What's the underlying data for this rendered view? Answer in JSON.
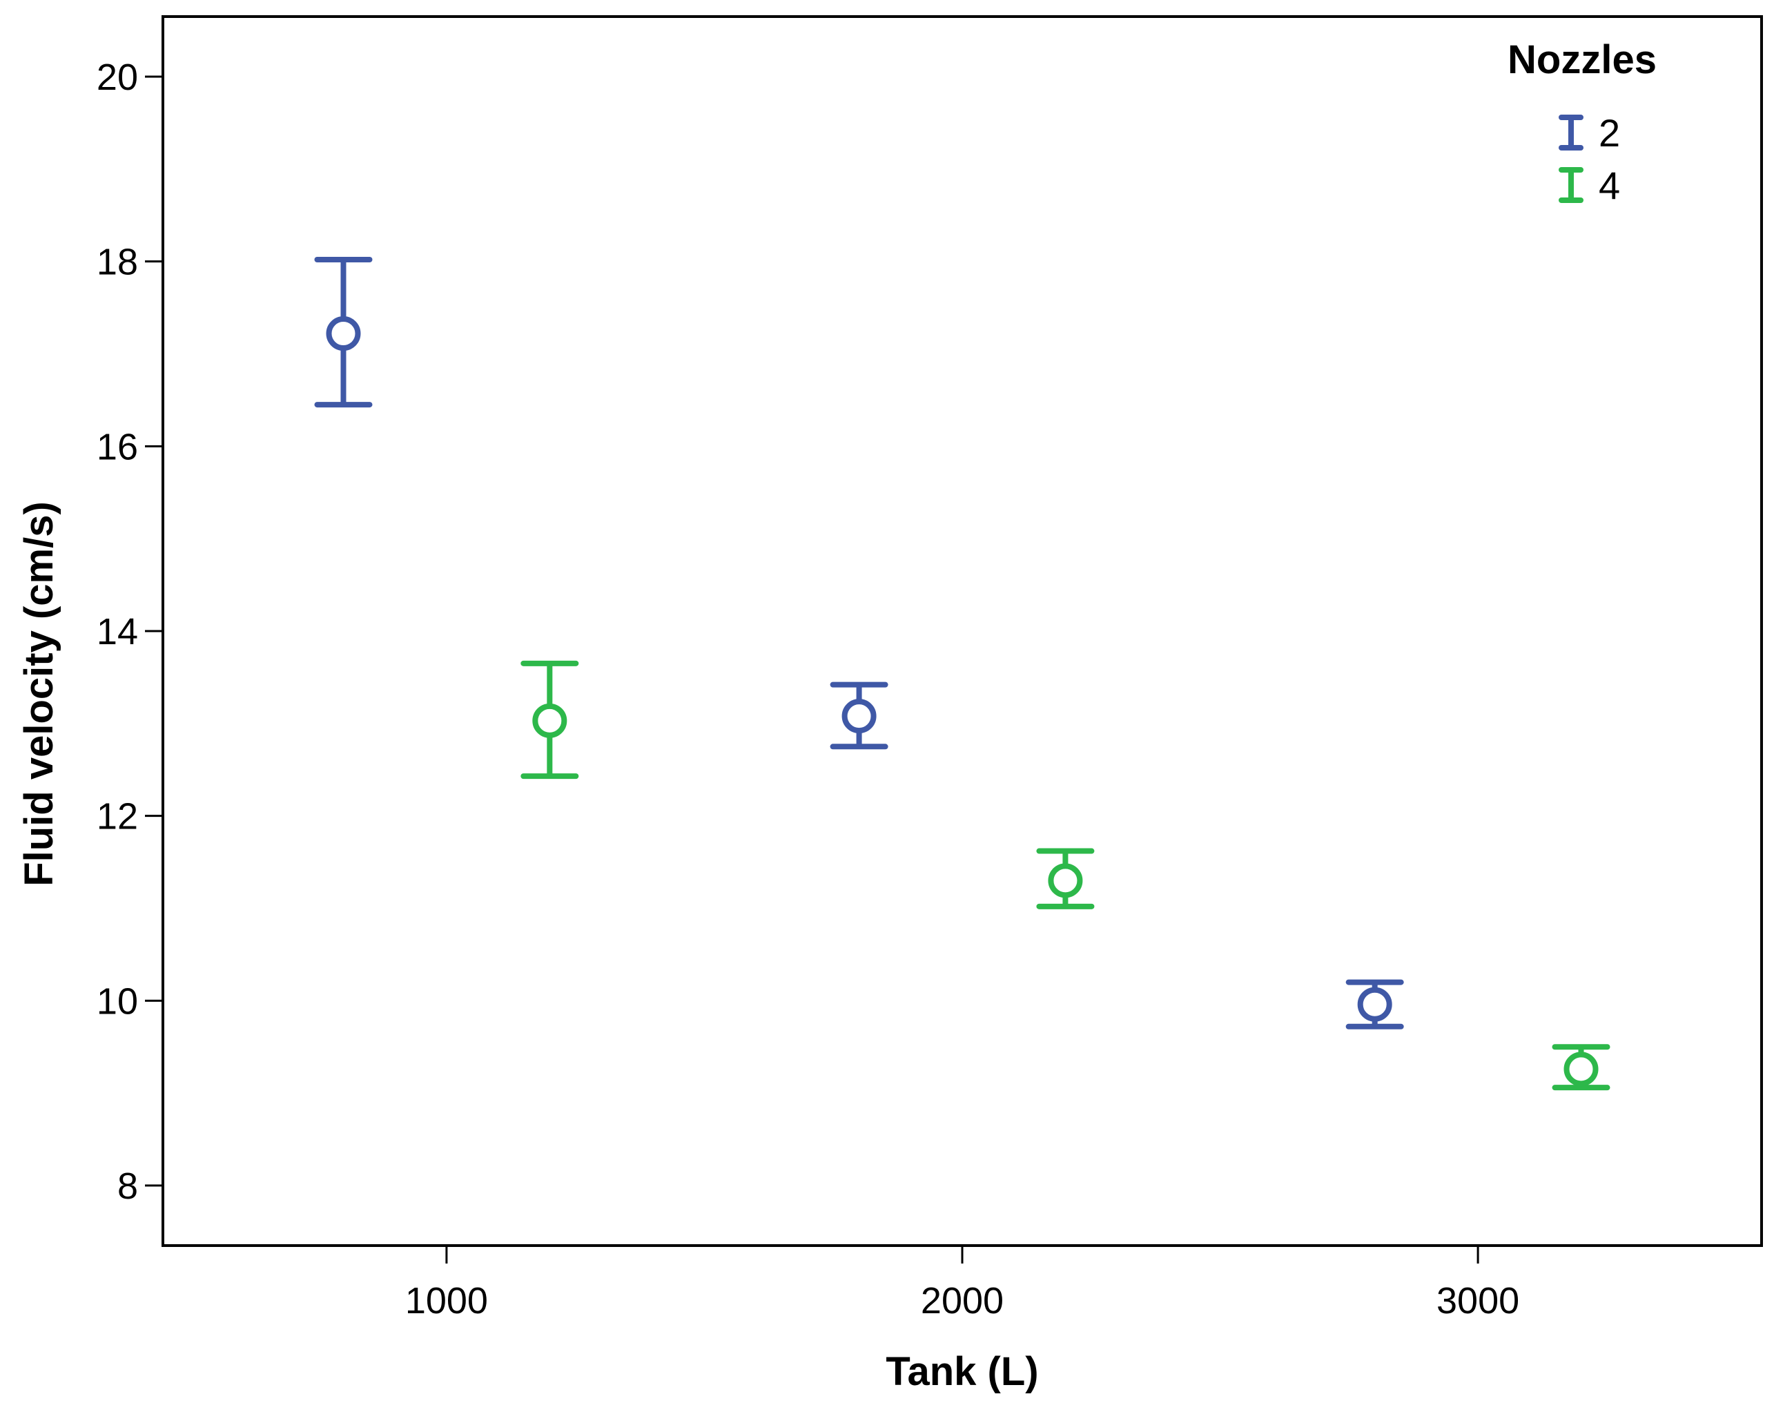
{
  "chart_data": {
    "type": "scatter",
    "subtype": "error-bar",
    "xlabel": "Tank (L)",
    "ylabel": "Fluid velocity (cm/s)",
    "xlim": [
      450,
      3550
    ],
    "ylim": [
      7.35,
      20.65
    ],
    "x_ticks": [
      1000,
      2000,
      3000
    ],
    "y_ticks": [
      8,
      10,
      12,
      14,
      16,
      18,
      20
    ],
    "grid": false,
    "legend": {
      "title": "Nozzles",
      "placement": "top-right"
    },
    "series": [
      {
        "name": "2",
        "color": "#3f58a6",
        "points": [
          {
            "x": 800,
            "y": 17.22,
            "lower": 16.45,
            "upper": 18.02
          },
          {
            "x": 1800,
            "y": 13.08,
            "lower": 12.75,
            "upper": 13.42
          },
          {
            "x": 2800,
            "y": 9.96,
            "lower": 9.72,
            "upper": 10.2
          }
        ]
      },
      {
        "name": "4",
        "color": "#2db84a",
        "points": [
          {
            "x": 1200,
            "y": 13.03,
            "lower": 12.43,
            "upper": 13.65
          },
          {
            "x": 2200,
            "y": 11.3,
            "lower": 11.02,
            "upper": 11.62
          },
          {
            "x": 3200,
            "y": 9.26,
            "lower": 9.06,
            "upper": 9.5
          }
        ]
      }
    ]
  }
}
